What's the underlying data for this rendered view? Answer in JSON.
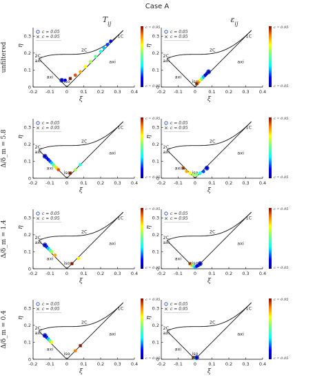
{
  "figure": {
    "title": "Case A",
    "col_titles": [
      "T_ij",
      "ε_ij"
    ],
    "row_labels": [
      "unfiltered",
      "Δ/δ_m = 5.8",
      "Δ/δ_m = 1.4",
      "Δ/δ_m = 0.4"
    ],
    "region_labels": {
      "c2_axi": "2C,\naxi",
      "two_c": "2C",
      "one_c": "1C",
      "axi_top": "axi",
      "axi_left": "axi",
      "iso": "iso"
    },
    "legend": {
      "c005": "c = 0.05",
      "c095": "c = 0.95"
    },
    "colorbar_top": "c = 0.95",
    "colorbar_bottom": "c = 0.05",
    "colors": {
      "low": "#0000c8",
      "high": "#c80000",
      "marker_low": "#1f3fbf",
      "marker_high": "#cc2222"
    }
  },
  "chart_data": [
    {
      "type": "scatter",
      "panel": "unfiltered-T",
      "xlabel": "ξ",
      "ylabel": "η",
      "xlim": [
        -0.2,
        0.4
      ],
      "ylim": [
        0,
        0.35
      ],
      "xticks": [
        "-0.2",
        "-0.1",
        "0",
        "0.1",
        "0.2",
        "0.3",
        "0.4"
      ],
      "yticks": [
        "0",
        "0.1",
        "0.2",
        "0.3"
      ],
      "series": [
        {
          "x": [
            -0.03,
            -0.01,
            0.02,
            0.05,
            0.08,
            0.11,
            0.14,
            0.17,
            0.2,
            0.22,
            0.24,
            0.26
          ],
          "y": [
            0.04,
            0.04,
            0.05,
            0.07,
            0.09,
            0.12,
            0.15,
            0.18,
            0.21,
            0.23,
            0.25,
            0.27
          ],
          "c": [
            0.05,
            0.1,
            0.95,
            0.9,
            0.8,
            0.7,
            0.6,
            0.5,
            0.4,
            0.3,
            0.2,
            0.1
          ]
        }
      ]
    },
    {
      "type": "scatter",
      "panel": "unfiltered-eps",
      "xlabel": "ξ",
      "ylabel": "η",
      "xlim": [
        -0.2,
        0.4
      ],
      "ylim": [
        0,
        0.35
      ],
      "xticks": [
        "-0.2",
        "-0.1",
        "0",
        "0.1",
        "0.2",
        "0.3",
        "0.4"
      ],
      "yticks": [
        "0",
        "0.1",
        "0.2",
        "0.3"
      ],
      "series": [
        {
          "x": [
            0.01,
            0.02,
            0.03,
            0.04,
            0.05,
            0.06,
            0.07,
            0.08
          ],
          "y": [
            0.02,
            0.03,
            0.04,
            0.05,
            0.06,
            0.07,
            0.08,
            0.09
          ],
          "c": [
            0.95,
            0.85,
            0.7,
            0.5,
            0.3,
            0.15,
            0.08,
            0.05
          ]
        }
      ]
    },
    {
      "type": "scatter",
      "panel": "d58-T",
      "xlabel": "ξ",
      "ylabel": "η",
      "xlim": [
        -0.2,
        0.4
      ],
      "ylim": [
        0,
        0.35
      ],
      "xticks": [
        "-0.2",
        "-0.1",
        "0",
        "0.1",
        "0.2",
        "0.3",
        "0.4"
      ],
      "yticks": [
        "0",
        "0.1",
        "0.2",
        "0.3"
      ],
      "series": [
        {
          "x": [
            -0.13,
            -0.12,
            -0.11,
            -0.1,
            -0.09,
            -0.08,
            -0.07,
            -0.06,
            -0.05,
            0.02,
            0.05,
            0.08
          ],
          "y": [
            0.13,
            0.12,
            0.11,
            0.1,
            0.09,
            0.08,
            0.07,
            0.06,
            0.05,
            0.03,
            0.05,
            0.08
          ],
          "c": [
            0.05,
            0.1,
            0.15,
            0.2,
            0.3,
            0.45,
            0.6,
            0.75,
            0.9,
            0.95,
            0.6,
            0.4
          ]
        }
      ]
    },
    {
      "type": "scatter",
      "panel": "d58-eps",
      "xlabel": "ξ",
      "ylabel": "η",
      "xlim": [
        -0.2,
        0.4
      ],
      "ylim": [
        0,
        0.35
      ],
      "xticks": [
        "-0.2",
        "-0.1",
        "0",
        "0.1",
        "0.2",
        "0.3",
        "0.4"
      ],
      "yticks": [
        "0",
        "0.1",
        "0.2",
        "0.3"
      ],
      "series": [
        {
          "x": [
            -0.07,
            -0.05,
            -0.03,
            -0.01,
            0.01,
            0.03,
            0.05,
            0.07
          ],
          "y": [
            0.06,
            0.04,
            0.03,
            0.02,
            0.02,
            0.03,
            0.04,
            0.06
          ],
          "c": [
            0.9,
            0.8,
            0.7,
            0.6,
            0.55,
            0.35,
            0.2,
            0.05
          ]
        }
      ]
    },
    {
      "type": "scatter",
      "panel": "d14-T",
      "xlabel": "ξ",
      "ylabel": "η",
      "xlim": [
        -0.2,
        0.4
      ],
      "ylim": [
        0,
        0.35
      ],
      "xticks": [
        "-0.2",
        "-0.1",
        "0",
        "0.1",
        "0.2",
        "0.3",
        "0.4"
      ],
      "yticks": [
        "0",
        "0.1",
        "0.2",
        "0.3"
      ],
      "series": [
        {
          "x": [
            -0.13,
            -0.12,
            -0.11,
            -0.1,
            -0.09,
            -0.07,
            0.03,
            0.07
          ],
          "y": [
            0.14,
            0.13,
            0.12,
            0.11,
            0.1,
            0.08,
            0.03,
            0.06
          ],
          "c": [
            0.05,
            0.15,
            0.3,
            0.45,
            0.6,
            0.8,
            0.95,
            0.7
          ]
        }
      ]
    },
    {
      "type": "scatter",
      "panel": "d14-eps",
      "xlabel": "ξ",
      "ylabel": "η",
      "xlim": [
        -0.2,
        0.4
      ],
      "ylim": [
        0,
        0.35
      ],
      "xticks": [
        "-0.2",
        "-0.1",
        "0",
        "0.1",
        "0.2",
        "0.3",
        "0.4"
      ],
      "yticks": [
        "0",
        "0.1",
        "0.2",
        "0.3"
      ],
      "series": [
        {
          "x": [
            -0.03,
            -0.02,
            -0.01,
            0,
            0.01,
            0.02,
            0.03
          ],
          "y": [
            0.03,
            0.02,
            0.015,
            0.01,
            0.015,
            0.02,
            0.03
          ],
          "c": [
            0.9,
            0.75,
            0.5,
            0.3,
            0.15,
            0.08,
            0.05
          ]
        }
      ]
    },
    {
      "type": "scatter",
      "panel": "d04-T",
      "xlabel": "ξ",
      "ylabel": "η",
      "xlim": [
        -0.2,
        0.4
      ],
      "ylim": [
        0,
        0.35
      ],
      "xticks": [
        "-0.2",
        "-0.1",
        "0",
        "0.1",
        "0.2",
        "0.3",
        "0.4"
      ],
      "yticks": [
        "0",
        "0.1",
        "0.2",
        "0.3"
      ],
      "series": [
        {
          "x": [
            -0.13,
            -0.12,
            -0.11,
            -0.1,
            -0.09,
            0.05,
            0.08
          ],
          "y": [
            0.14,
            0.13,
            0.12,
            0.11,
            0.1,
            0.05,
            0.08
          ],
          "c": [
            0.05,
            0.15,
            0.3,
            0.5,
            0.7,
            0.85,
            0.95
          ]
        }
      ]
    },
    {
      "type": "scatter",
      "panel": "d04-eps",
      "xlabel": "ξ",
      "ylabel": "η",
      "xlim": [
        -0.2,
        0.4
      ],
      "ylim": [
        0,
        0.35
      ],
      "xticks": [
        "-0.2",
        "-0.1",
        "0",
        "0.1",
        "0.2",
        "0.3",
        "0.4"
      ],
      "yticks": [
        "0",
        "0.1",
        "0.2",
        "0.3"
      ],
      "series": [
        {
          "x": [
            -0.01,
            0,
            0.01
          ],
          "y": [
            0.01,
            0.005,
            0.01
          ],
          "c": [
            0.95,
            0.5,
            0.05
          ]
        }
      ]
    }
  ]
}
